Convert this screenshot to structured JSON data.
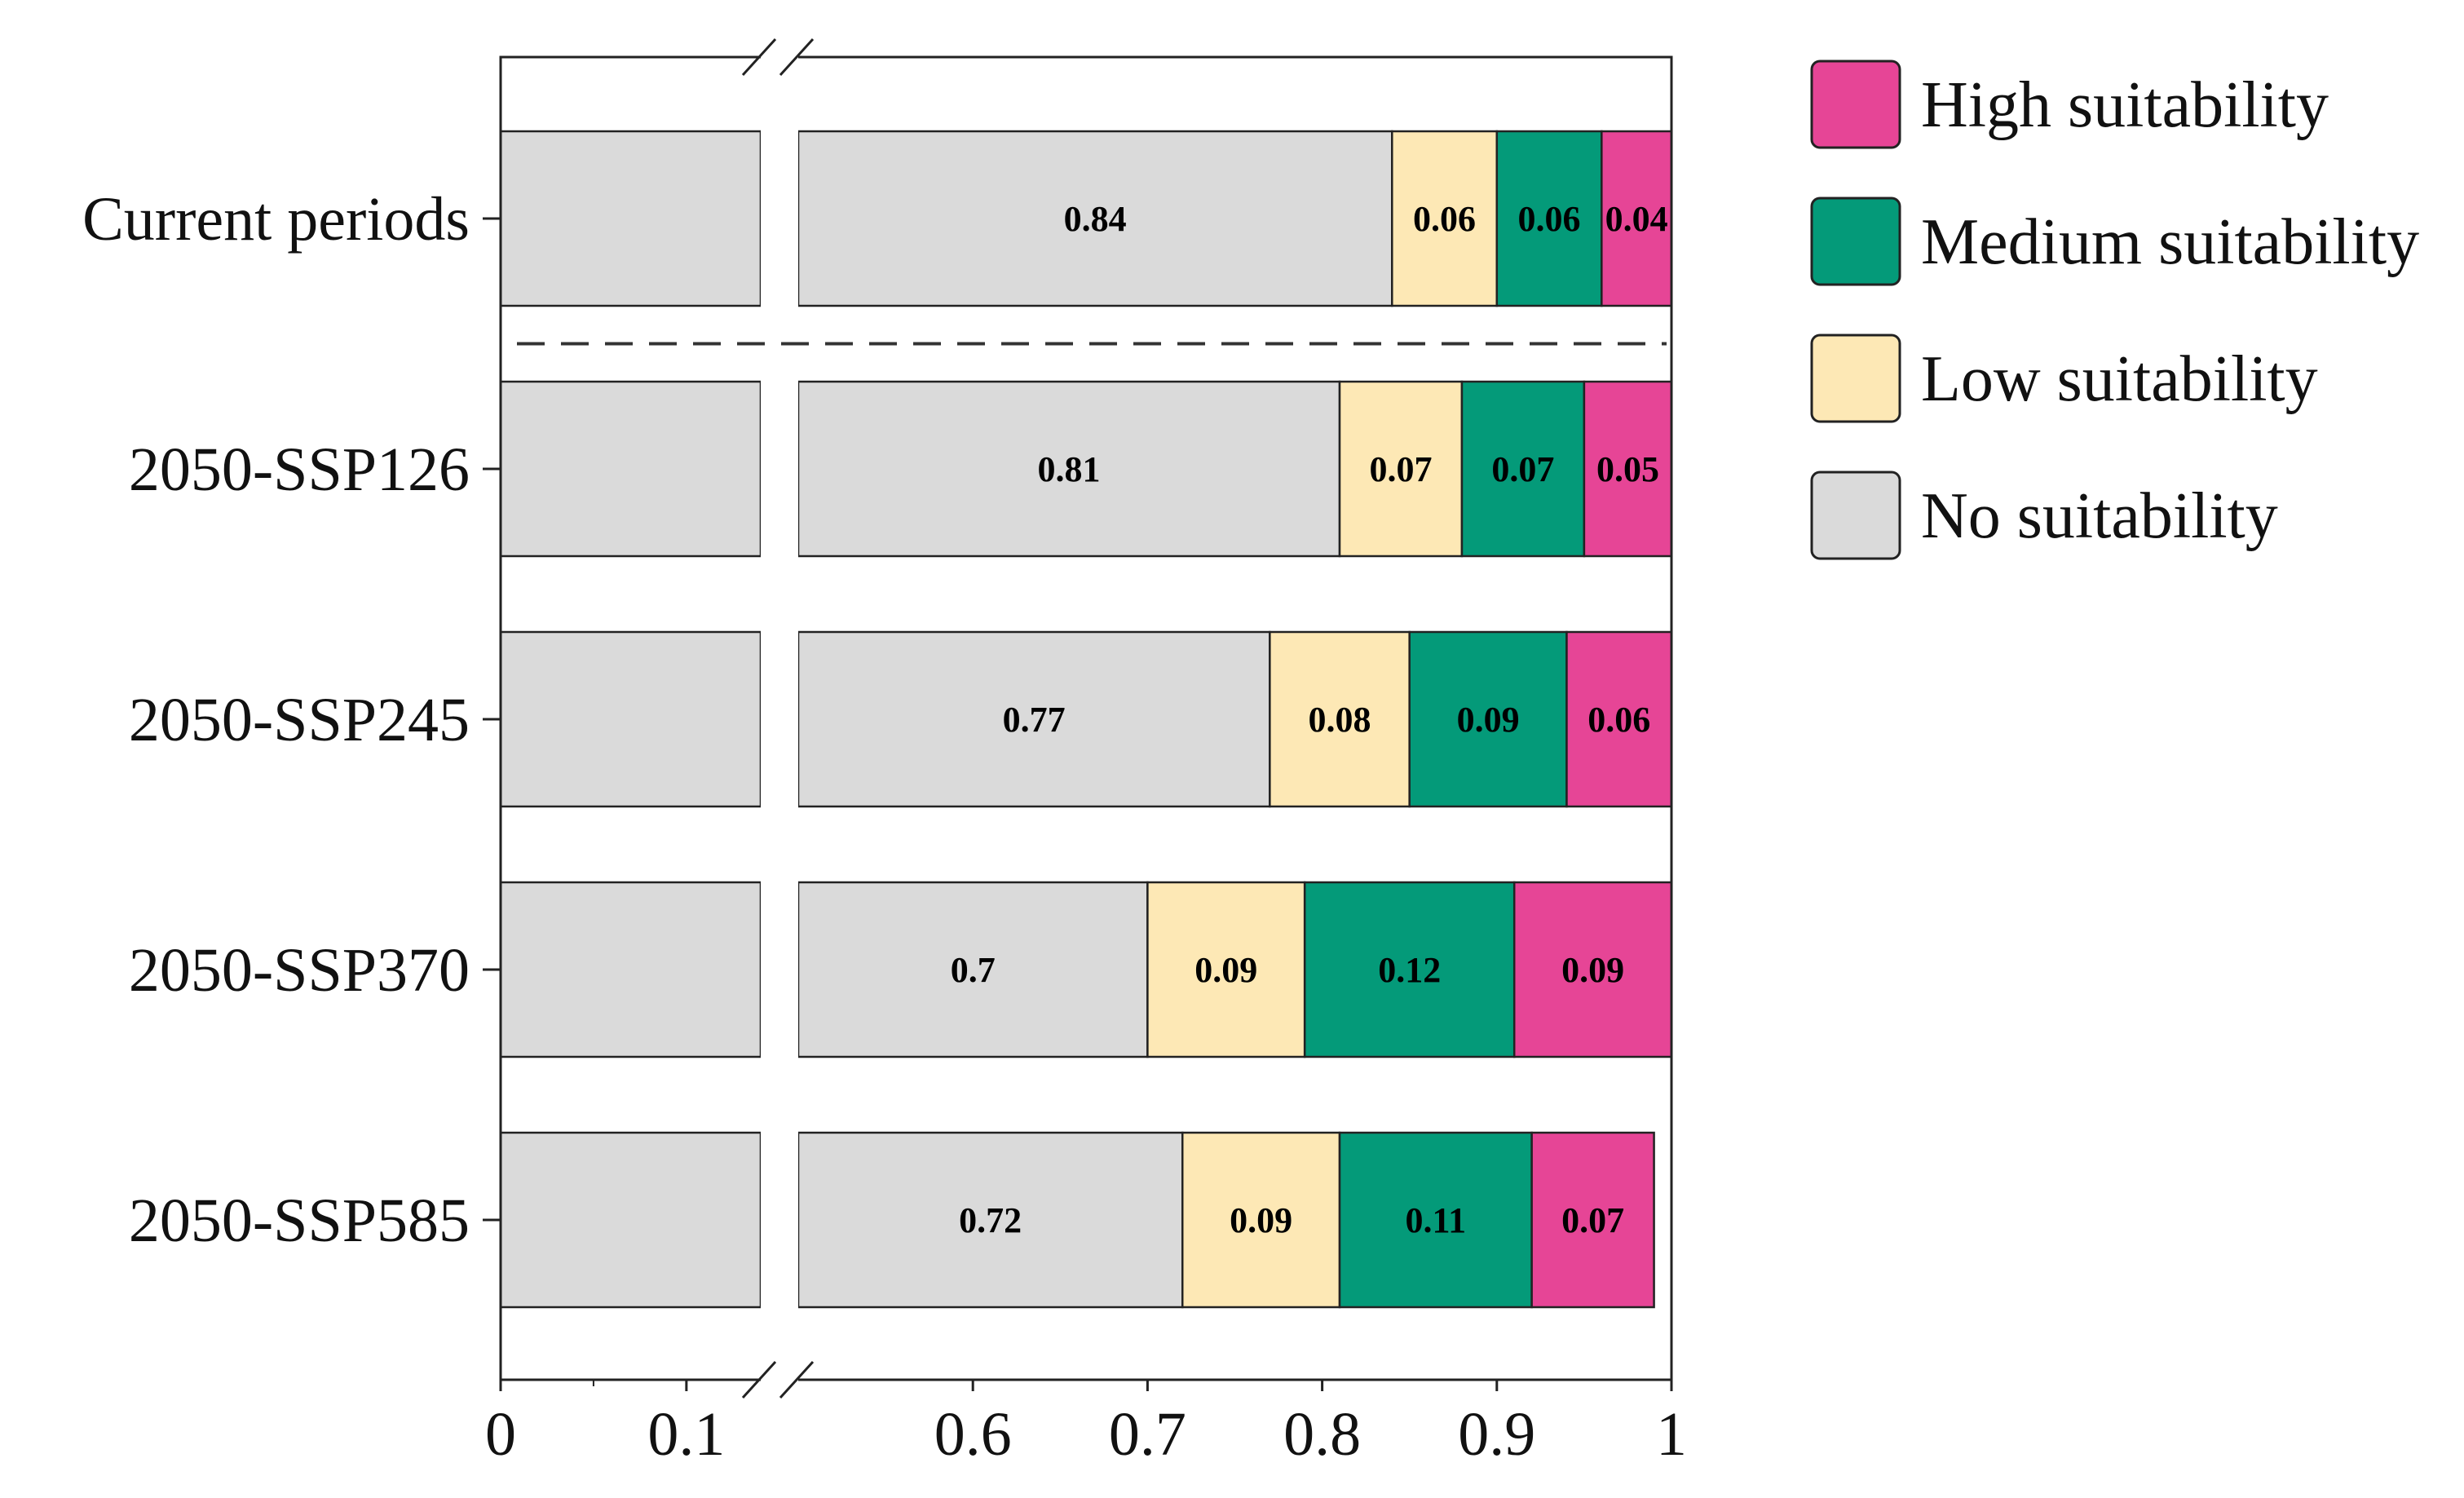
{
  "chart_data": {
    "type": "bar",
    "orientation": "horizontal",
    "stacked": true,
    "categories": [
      "Current periods",
      "2050-SSP126",
      "2050-SSP245",
      "2050-SSP370",
      "2050-SSP585"
    ],
    "series": [
      {
        "name": "No suitability",
        "values": [
          0.84,
          0.81,
          0.77,
          0.7,
          0.72
        ],
        "labels": [
          "0.84",
          "0.81",
          "0.77",
          "0.7",
          "0.72"
        ]
      },
      {
        "name": "Low suitability",
        "values": [
          0.06,
          0.07,
          0.08,
          0.09,
          0.09
        ],
        "labels": [
          "0.06",
          "0.07",
          "0.08",
          "0.09",
          "0.09"
        ]
      },
      {
        "name": "Medium suitability",
        "values": [
          0.06,
          0.07,
          0.09,
          0.12,
          0.11
        ],
        "labels": [
          "0.06",
          "0.07",
          "0.09",
          "0.12",
          "0.11"
        ]
      },
      {
        "name": "High suitability",
        "values": [
          0.04,
          0.05,
          0.06,
          0.09,
          0.07
        ],
        "labels": [
          "0.04",
          "0.05",
          "0.06",
          "0.09",
          "0.07"
        ]
      }
    ],
    "colors": {
      "No suitability": "#dadada",
      "Low suitability": "#fde8b5",
      "Medium suitability": "#049a79",
      "High suitability": "#e64596"
    },
    "legend_order": [
      "High suitability",
      "Medium suitability",
      "Low suitability",
      "No suitability"
    ],
    "xaxis": {
      "ticks": [
        0,
        0.1,
        0.6,
        0.7,
        0.8,
        0.9,
        1
      ],
      "tick_labels": [
        "0",
        "0.1",
        "0.6",
        "0.7",
        "0.8",
        "0.9",
        "1"
      ],
      "break": [
        0.14,
        0.5
      ],
      "xlim": [
        0,
        1
      ]
    },
    "legend_position": "right",
    "separator_after_category": "Current periods"
  }
}
